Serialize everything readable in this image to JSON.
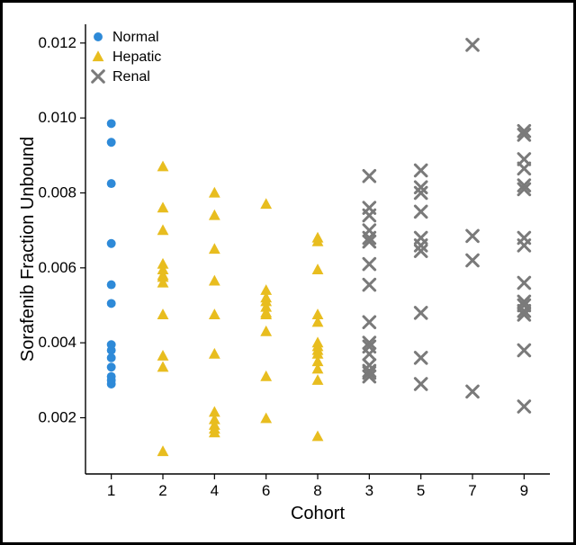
{
  "chart": {
    "type": "scatter",
    "background_color": "#ffffff",
    "border_color": "#000000",
    "axis_color": "#000000",
    "tick_fontsize": 17,
    "label_fontsize": 20,
    "legend_fontsize": 16,
    "x": {
      "label": "Cohort",
      "categories": [
        "1",
        "2",
        "4",
        "6",
        "8",
        "3",
        "5",
        "7",
        "9"
      ],
      "label_color": "#000000"
    },
    "y": {
      "label": "Sorafenib Fraction Unbound",
      "ticks": [
        0.002,
        0.004,
        0.006,
        0.008,
        0.01,
        0.012
      ],
      "lim": [
        0.0005,
        0.0125
      ],
      "label_color": "#000000"
    },
    "legend": {
      "position": "top-left-inside",
      "items": [
        {
          "label": "Normal",
          "color": "#2e8ad8",
          "marker": "circle"
        },
        {
          "label": "Hepatic",
          "color": "#e8bd1f",
          "marker": "triangle"
        },
        {
          "label": "Renal",
          "color": "#7a7a7a",
          "marker": "x"
        }
      ]
    },
    "marker_size": 9,
    "series": [
      {
        "name": "Normal",
        "color": "#2e8ad8",
        "marker": "circle",
        "points": [
          {
            "cat": "1",
            "y": 0.00985
          },
          {
            "cat": "1",
            "y": 0.00935
          },
          {
            "cat": "1",
            "y": 0.00825
          },
          {
            "cat": "1",
            "y": 0.00665
          },
          {
            "cat": "1",
            "y": 0.00555
          },
          {
            "cat": "1",
            "y": 0.00505
          },
          {
            "cat": "1",
            "y": 0.00395
          },
          {
            "cat": "1",
            "y": 0.0038
          },
          {
            "cat": "1",
            "y": 0.0036
          },
          {
            "cat": "1",
            "y": 0.00335
          },
          {
            "cat": "1",
            "y": 0.0031
          },
          {
            "cat": "1",
            "y": 0.003
          },
          {
            "cat": "1",
            "y": 0.0029
          }
        ]
      },
      {
        "name": "Hepatic",
        "color": "#e8bd1f",
        "marker": "triangle",
        "points": [
          {
            "cat": "2",
            "y": 0.0087
          },
          {
            "cat": "2",
            "y": 0.0076
          },
          {
            "cat": "2",
            "y": 0.007
          },
          {
            "cat": "2",
            "y": 0.0061
          },
          {
            "cat": "2",
            "y": 0.00595
          },
          {
            "cat": "2",
            "y": 0.0058
          },
          {
            "cat": "2",
            "y": 0.00575
          },
          {
            "cat": "2",
            "y": 0.0056
          },
          {
            "cat": "2",
            "y": 0.00475
          },
          {
            "cat": "2",
            "y": 0.00365
          },
          {
            "cat": "2",
            "y": 0.00335
          },
          {
            "cat": "2",
            "y": 0.0011
          },
          {
            "cat": "4",
            "y": 0.008
          },
          {
            "cat": "4",
            "y": 0.0074
          },
          {
            "cat": "4",
            "y": 0.0065
          },
          {
            "cat": "4",
            "y": 0.00565
          },
          {
            "cat": "4",
            "y": 0.00475
          },
          {
            "cat": "4",
            "y": 0.0037
          },
          {
            "cat": "4",
            "y": 0.00215
          },
          {
            "cat": "4",
            "y": 0.00195
          },
          {
            "cat": "4",
            "y": 0.0018
          },
          {
            "cat": "4",
            "y": 0.0017
          },
          {
            "cat": "4",
            "y": 0.0016
          },
          {
            "cat": "6",
            "y": 0.0077
          },
          {
            "cat": "6",
            "y": 0.0054
          },
          {
            "cat": "6",
            "y": 0.0052
          },
          {
            "cat": "6",
            "y": 0.0051
          },
          {
            "cat": "6",
            "y": 0.00495
          },
          {
            "cat": "6",
            "y": 0.0048
          },
          {
            "cat": "6",
            "y": 0.00475
          },
          {
            "cat": "6",
            "y": 0.0043
          },
          {
            "cat": "6",
            "y": 0.0031
          },
          {
            "cat": "6",
            "y": 0.00198
          },
          {
            "cat": "8",
            "y": 0.0068
          },
          {
            "cat": "8",
            "y": 0.0067
          },
          {
            "cat": "8",
            "y": 0.00595
          },
          {
            "cat": "8",
            "y": 0.00475
          },
          {
            "cat": "8",
            "y": 0.00455
          },
          {
            "cat": "8",
            "y": 0.004
          },
          {
            "cat": "8",
            "y": 0.0039
          },
          {
            "cat": "8",
            "y": 0.0038
          },
          {
            "cat": "8",
            "y": 0.0037
          },
          {
            "cat": "8",
            "y": 0.0035
          },
          {
            "cat": "8",
            "y": 0.0033
          },
          {
            "cat": "8",
            "y": 0.003
          },
          {
            "cat": "8",
            "y": 0.0015
          }
        ]
      },
      {
        "name": "Renal",
        "color": "#7a7a7a",
        "marker": "x",
        "points": [
          {
            "cat": "3",
            "y": 0.00845
          },
          {
            "cat": "3",
            "y": 0.0076
          },
          {
            "cat": "3",
            "y": 0.0074
          },
          {
            "cat": "3",
            "y": 0.007
          },
          {
            "cat": "3",
            "y": 0.0068
          },
          {
            "cat": "3",
            "y": 0.0067
          },
          {
            "cat": "3",
            "y": 0.0061
          },
          {
            "cat": "3",
            "y": 0.00555
          },
          {
            "cat": "3",
            "y": 0.00455
          },
          {
            "cat": "3",
            "y": 0.004
          },
          {
            "cat": "3",
            "y": 0.0039
          },
          {
            "cat": "3",
            "y": 0.0037
          },
          {
            "cat": "3",
            "y": 0.0034
          },
          {
            "cat": "3",
            "y": 0.00325
          },
          {
            "cat": "3",
            "y": 0.0032
          },
          {
            "cat": "3",
            "y": 0.0031
          },
          {
            "cat": "5",
            "y": 0.0086
          },
          {
            "cat": "5",
            "y": 0.00815
          },
          {
            "cat": "5",
            "y": 0.008
          },
          {
            "cat": "5",
            "y": 0.0075
          },
          {
            "cat": "5",
            "y": 0.0068
          },
          {
            "cat": "5",
            "y": 0.0066
          },
          {
            "cat": "5",
            "y": 0.00645
          },
          {
            "cat": "5",
            "y": 0.0048
          },
          {
            "cat": "5",
            "y": 0.0036
          },
          {
            "cat": "5",
            "y": 0.0029
          },
          {
            "cat": "7",
            "y": 0.01195
          },
          {
            "cat": "7",
            "y": 0.00685
          },
          {
            "cat": "7",
            "y": 0.0062
          },
          {
            "cat": "7",
            "y": 0.0027
          },
          {
            "cat": "9",
            "y": 0.00965
          },
          {
            "cat": "9",
            "y": 0.00955
          },
          {
            "cat": "9",
            "y": 0.0089
          },
          {
            "cat": "9",
            "y": 0.00865
          },
          {
            "cat": "9",
            "y": 0.0082
          },
          {
            "cat": "9",
            "y": 0.0081
          },
          {
            "cat": "9",
            "y": 0.0068
          },
          {
            "cat": "9",
            "y": 0.0066
          },
          {
            "cat": "9",
            "y": 0.0056
          },
          {
            "cat": "9",
            "y": 0.0051
          },
          {
            "cat": "9",
            "y": 0.005
          },
          {
            "cat": "9",
            "y": 0.00485
          },
          {
            "cat": "9",
            "y": 0.00475
          },
          {
            "cat": "9",
            "y": 0.0038
          },
          {
            "cat": "9",
            "y": 0.0023
          }
        ]
      }
    ]
  }
}
